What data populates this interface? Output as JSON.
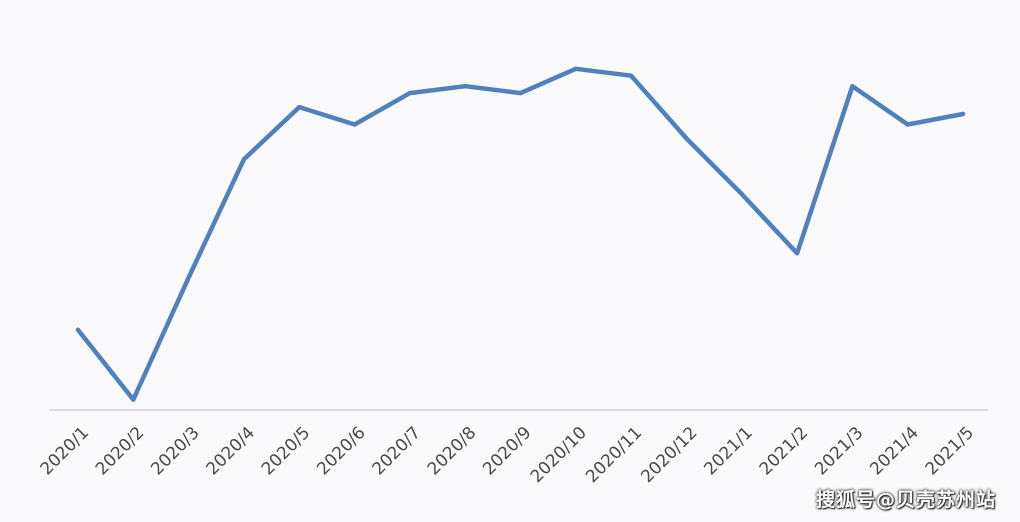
{
  "chart_data": {
    "type": "line",
    "title": "",
    "xlabel": "",
    "ylabel": "",
    "categories": [
      "2020/1",
      "2020/2",
      "2020/3",
      "2020/4",
      "2020/5",
      "2020/6",
      "2020/7",
      "2020/8",
      "2020/9",
      "2020/10",
      "2020/11",
      "2020/12",
      "2021/1",
      "2021/2",
      "2021/3",
      "2021/4",
      "2021/5"
    ],
    "series": [
      {
        "color": "#4f81bd",
        "values": [
          23,
          3,
          38,
          72,
          87,
          82,
          91,
          93,
          91,
          98,
          96,
          78,
          62,
          45,
          93,
          82,
          85
        ]
      }
    ],
    "ylim": [
      0,
      112
    ],
    "grid": false,
    "legend": "none",
    "axis_color": "#c0c0c0"
  },
  "watermark": "搜狐号@贝壳苏州站"
}
